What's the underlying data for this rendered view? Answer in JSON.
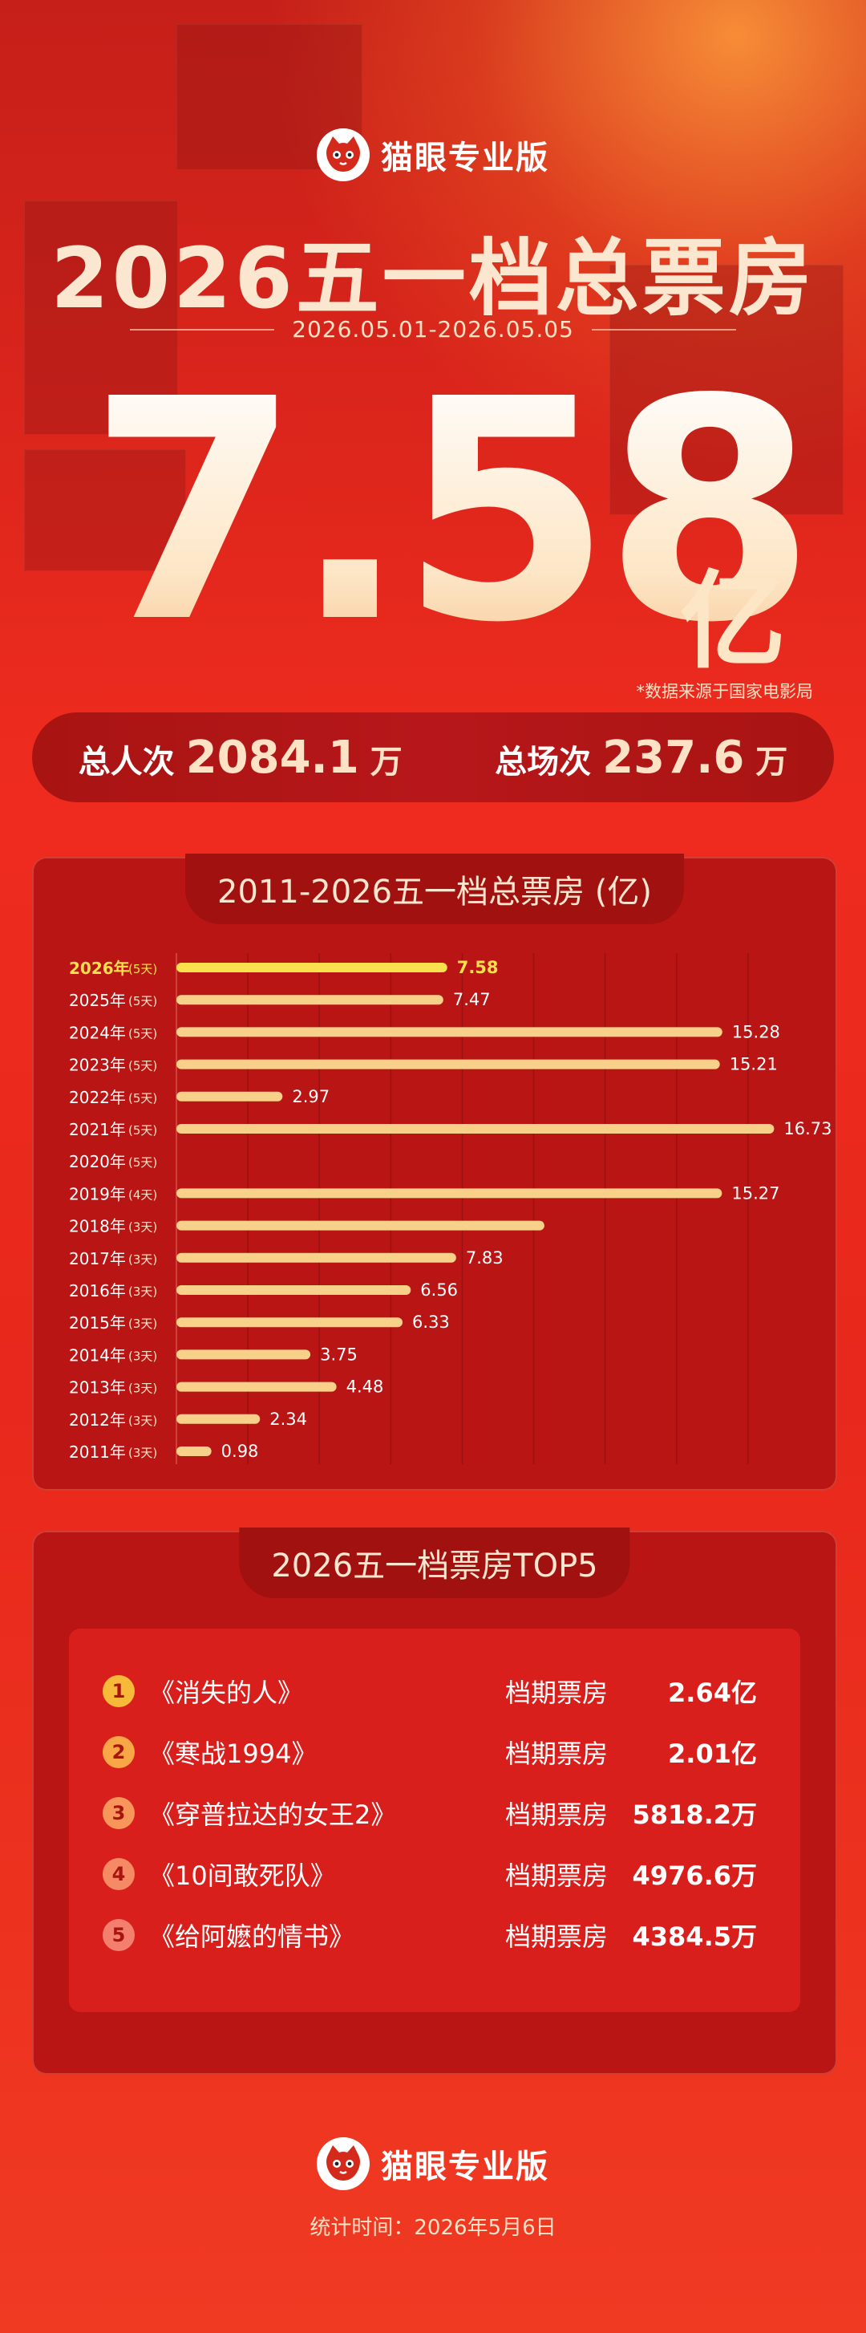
{
  "brand": {
    "name": "猫眼专业版",
    "logo": "cat-face-logo-icon"
  },
  "headline": {
    "title": "2026五一档总票房",
    "date_range": "2026.05.01-2026.05.05",
    "total_value": "7.58",
    "total_unit": "亿",
    "source_note": "*数据来源于国家电影局"
  },
  "stats": [
    {
      "label": "总人次",
      "value": "2084.1",
      "unit": "万"
    },
    {
      "label": "总场次",
      "value": "237.6",
      "unit": "万"
    }
  ],
  "chart_data": {
    "type": "bar",
    "orientation": "horizontal",
    "title": "2011-2026五一档总票房 (亿)",
    "categories": [
      "2026年",
      "2025年",
      "2024年",
      "2023年",
      "2022年",
      "2021年",
      "2020年",
      "2019年",
      "2018年",
      "2017年",
      "2016年",
      "2015年",
      "2014年",
      "2013年",
      "2012年",
      "2011年"
    ],
    "day_notes": [
      "(5天)",
      "(5天)",
      "(5天)",
      "(5天)",
      "(5天)",
      "(5天)",
      "(5天)",
      "(4天)",
      "(3天)",
      "(3天)",
      "(3天)",
      "(3天)",
      "(3天)",
      "(3天)",
      "(3天)",
      "(3天)"
    ],
    "values": [
      7.58,
      7.47,
      15.28,
      15.21,
      2.97,
      16.73,
      0,
      15.27,
      10.3,
      7.83,
      6.56,
      6.33,
      3.75,
      4.48,
      2.34,
      0.98
    ],
    "value_labels": [
      "7.58",
      "7.47",
      "15.28",
      "15.21",
      "2.97",
      "16.73",
      "",
      "15.27",
      "",
      "7.83",
      "6.56",
      "6.33",
      "3.75",
      "4.48",
      "2.34",
      "0.98"
    ],
    "xlim": [
      0,
      18
    ],
    "grid": true,
    "highlight_index": 0,
    "colors": {
      "bar": "#f7d08a",
      "highlight": "#f9e04c",
      "label": "#ffffff",
      "highlight_label": "#f9e04c"
    }
  },
  "top5": {
    "title": "2026五一档票房TOP5",
    "column_label": "档期票房",
    "rows": [
      {
        "rank": "1",
        "title": "《消失的人》",
        "value": "2.64亿",
        "color": "#f7b93a"
      },
      {
        "rank": "2",
        "title": "《寒战1994》",
        "value": "2.01亿",
        "color": "#f9a646"
      },
      {
        "rank": "3",
        "title": "《穿普拉达的女王2》",
        "value": "5818.2万",
        "color": "#f7955a"
      },
      {
        "rank": "4",
        "title": "《10间敢死队》",
        "value": "4976.6万",
        "color": "#f58a64"
      },
      {
        "rank": "5",
        "title": "《给阿嬷的情书》",
        "value": "4384.5万",
        "color": "#f47f6e"
      }
    ]
  },
  "footer": {
    "time_label": "统计时间：2026年5月6日"
  }
}
